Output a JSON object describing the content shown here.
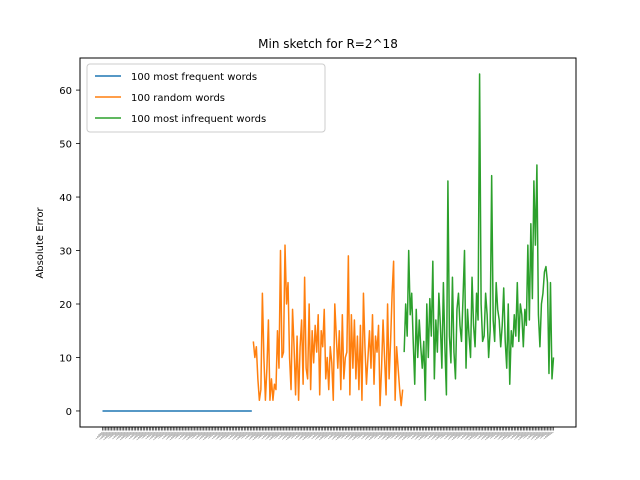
{
  "chart_data": {
    "type": "line",
    "title": "Min sketch for R=2^18",
    "xlabel": "",
    "ylabel": "Absolute Error",
    "ylim": [
      -3,
      66
    ],
    "yticks": [
      0,
      10,
      20,
      30,
      40,
      50,
      60
    ],
    "grid": false,
    "legend_position": "top-left",
    "series": [
      {
        "name": "100 most frequent words",
        "color": "#1f77b4",
        "values": [
          0,
          0,
          0,
          0,
          0,
          0,
          0,
          0,
          0,
          0,
          0,
          0,
          0,
          0,
          0,
          0,
          0,
          0,
          0,
          0,
          0,
          0,
          0,
          0,
          0,
          0,
          0,
          0,
          0,
          0,
          0,
          0,
          0,
          0,
          0,
          0,
          0,
          0,
          0,
          0,
          0,
          0,
          0,
          0,
          0,
          0,
          0,
          0,
          0,
          0,
          0,
          0,
          0,
          0,
          0,
          0,
          0,
          0,
          0,
          0,
          0,
          0,
          0,
          0,
          0,
          0,
          0,
          0,
          0,
          0,
          0,
          0,
          0,
          0,
          0,
          0,
          0,
          0,
          0,
          0,
          0,
          0,
          0,
          0,
          0,
          0,
          0,
          0,
          0,
          0,
          0,
          0,
          0,
          0,
          0,
          0,
          0,
          0,
          0,
          0
        ]
      },
      {
        "name": "100 random words",
        "color": "#ff7f0e",
        "values": [
          13,
          10,
          12,
          6,
          2,
          4,
          22,
          10,
          2,
          8,
          17,
          2,
          6,
          2,
          5,
          4,
          15,
          8,
          30,
          10,
          11,
          31,
          20,
          24,
          10,
          4,
          19,
          12,
          3,
          14,
          2,
          12,
          17,
          5,
          25,
          8,
          6,
          20,
          4,
          15,
          9,
          16,
          11,
          18,
          3,
          15,
          12,
          19,
          6,
          10,
          4,
          12,
          9,
          2,
          20,
          14,
          8,
          15,
          4,
          18,
          6,
          10,
          11,
          29,
          3,
          18,
          8,
          17,
          6,
          14,
          4,
          16,
          2,
          22,
          12,
          5,
          10,
          15,
          8,
          18,
          5,
          14,
          11,
          16,
          1,
          8,
          17,
          10,
          3,
          20,
          6,
          13,
          22,
          28,
          2,
          12,
          8,
          4,
          1,
          4
        ]
      },
      {
        "name": "100 most infrequent words",
        "color": "#2ca02c",
        "values": [
          11,
          20,
          14,
          30,
          18,
          22,
          13,
          5,
          19,
          10,
          17,
          12,
          8,
          13,
          2,
          20,
          10,
          21,
          14,
          28,
          6,
          17,
          11,
          22,
          16,
          8,
          24,
          12,
          3,
          43,
          14,
          9,
          25,
          11,
          6,
          19,
          22,
          16,
          13,
          21,
          30,
          8,
          19,
          14,
          10,
          25,
          16,
          12,
          22,
          17,
          63,
          20,
          13,
          14,
          22,
          18,
          10,
          15,
          44,
          17,
          13,
          24,
          19,
          17,
          12,
          16,
          23,
          13,
          8,
          20,
          5,
          15,
          12,
          18,
          14,
          24,
          13,
          20,
          18,
          12,
          19,
          16,
          31,
          17,
          35,
          21,
          43,
          31,
          46,
          18,
          12,
          20,
          22,
          26,
          27,
          24,
          7,
          24,
          6,
          10
        ]
      }
    ]
  }
}
